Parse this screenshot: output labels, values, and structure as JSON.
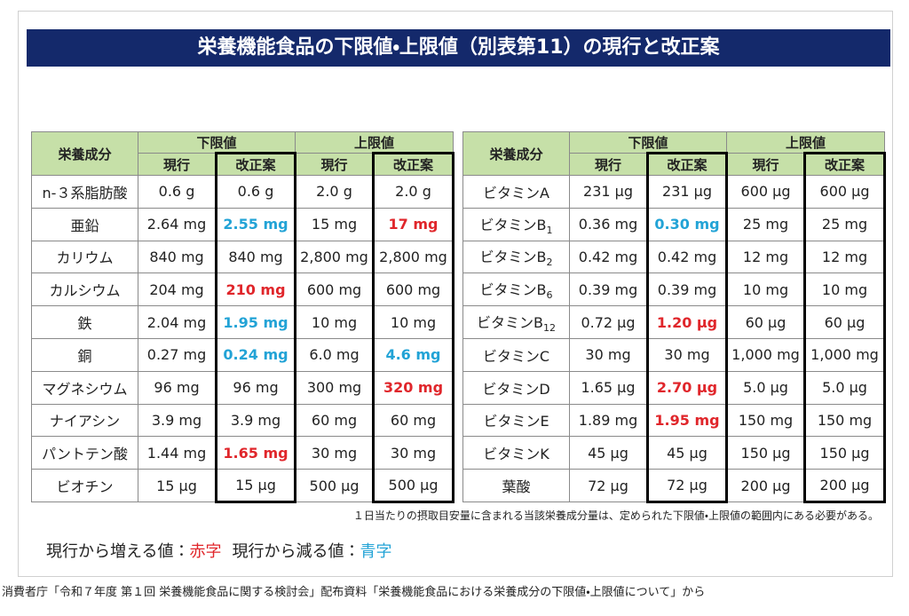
{
  "title": "栄養機能食品の下限値・上限値（別表第11）の現行と改正案",
  "tables": [
    {
      "header": {
        "nutrient": "栄養成分",
        "groups": [
          "下限値",
          "上限値"
        ],
        "sub": [
          "現行",
          "改正案",
          "現行",
          "改正案"
        ]
      },
      "rows": [
        [
          "n-３系脂肪酸",
          "0.6 g",
          "0.6 g",
          "2.0 g",
          "2.0 g"
        ],
        [
          "亜鉛",
          "2.64 mg",
          {
            "text": "2.55 mg",
            "color": "#22a3d6"
          },
          "15 mg",
          {
            "text": "17 mg",
            "color": "#e0262b"
          }
        ],
        [
          "カリウム",
          "840 mg",
          "840 mg",
          "2,800 mg",
          "2,800 mg"
        ],
        [
          "カルシウム",
          "204 mg",
          {
            "text": "210 mg",
            "color": "#e0262b"
          },
          "600 mg",
          "600 mg"
        ],
        [
          "鉄",
          "2.04 mg",
          {
            "text": "1.95 mg",
            "color": "#22a3d6"
          },
          "10 mg",
          "10 mg"
        ],
        [
          "銅",
          "0.27 mg",
          {
            "text": "0.24 mg",
            "color": "#22a3d6"
          },
          "6.0 mg",
          {
            "text": "4.6 mg",
            "color": "#22a3d6"
          }
        ],
        [
          "マグネシウム",
          "96 mg",
          "96 mg",
          "300 mg",
          {
            "text": "320 mg",
            "color": "#e0262b"
          }
        ],
        [
          "ナイアシン",
          "3.9 mg",
          "3.9 mg",
          "60 mg",
          "60 mg"
        ],
        [
          "パントテン酸",
          "1.44 mg",
          {
            "text": "1.65 mg",
            "color": "#e0262b"
          },
          "30 mg",
          "30 mg"
        ],
        [
          "ビオチン",
          "15 μg",
          "15 μg",
          "500 μg",
          "500 μg"
        ]
      ]
    },
    {
      "header": {
        "nutrient": "栄養成分",
        "groups": [
          "下限値",
          "上限値"
        ],
        "sub": [
          "現行",
          "改正案",
          "現行",
          "改正案"
        ]
      },
      "rows": [
        [
          "ビタミンA",
          "231 μg",
          "231 μg",
          "600 μg",
          "600 μg"
        ],
        [
          {
            "text": "ビタミンB",
            "sub": "1"
          },
          "0.36 mg",
          {
            "text": "0.30 mg",
            "color": "#22a3d6"
          },
          "25 mg",
          "25 mg"
        ],
        [
          {
            "text": "ビタミンB",
            "sub": "2"
          },
          "0.42 mg",
          "0.42 mg",
          "12 mg",
          "12 mg"
        ],
        [
          {
            "text": "ビタミンB",
            "sub": "6"
          },
          "0.39 mg",
          "0.39 mg",
          "10 mg",
          "10 mg"
        ],
        [
          {
            "text": "ビタミンB",
            "sub": "12"
          },
          "0.72 μg",
          {
            "text": "1.20 μg",
            "color": "#e0262b"
          },
          "60 μg",
          "60 μg"
        ],
        [
          "ビタミンC",
          "30 mg",
          "30 mg",
          "1,000 mg",
          "1,000 mg"
        ],
        [
          "ビタミンD",
          "1.65 μg",
          {
            "text": "2.70 μg",
            "color": "#e0262b"
          },
          "5.0 μg",
          "5.0 μg"
        ],
        [
          "ビタミンE",
          "1.89 mg",
          {
            "text": "1.95 mg",
            "color": "#e0262b"
          },
          "150 mg",
          "150 mg"
        ],
        [
          "ビタミンK",
          "45 μg",
          "45 μg",
          "150 μg",
          "150 μg"
        ],
        [
          "葉酸",
          "72 μg",
          "72 μg",
          "200 μg",
          "200 μg"
        ]
      ]
    }
  ],
  "footnote": "１日当たりの摂取目安量に含まれる当該栄養成分量は、定められた下限値・上限値の範囲内にある必要がある。",
  "legend": [
    {
      "label": "現行から増える値：",
      "value": "赤字",
      "color": "#e0262b"
    },
    {
      "label": "現行から減る値：",
      "value": "青字",
      "color": "#22a3d6"
    }
  ],
  "source": "消費者庁「令和７年度 第１回 栄養機能食品に関する検討会」配布資料「栄養機能食品における栄養成分の下限値・上限値について」から"
}
